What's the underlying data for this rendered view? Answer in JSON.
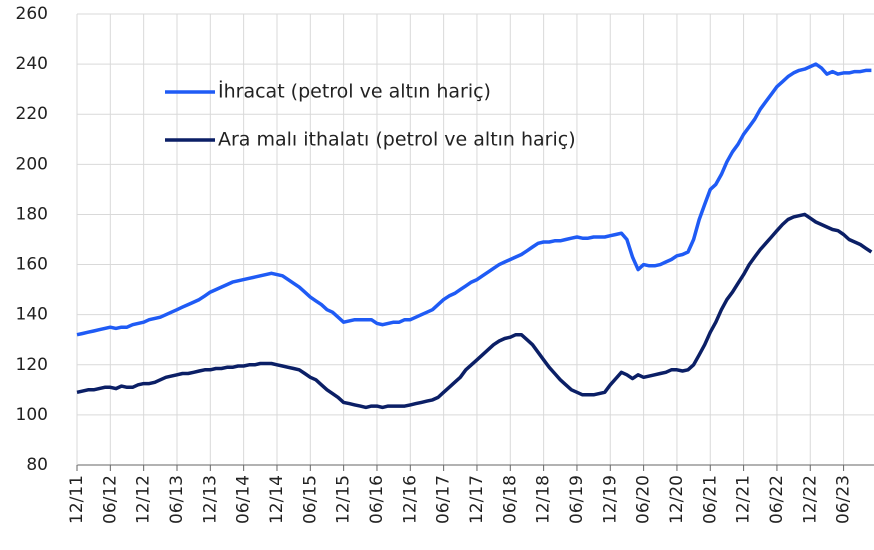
{
  "chart_data": {
    "type": "line",
    "categories": [
      "12/11",
      null,
      null,
      null,
      null,
      null,
      "06/12",
      null,
      null,
      null,
      null,
      null,
      "12/12",
      null,
      null,
      null,
      null,
      null,
      "06/13",
      null,
      null,
      null,
      null,
      null,
      "12/13",
      null,
      null,
      null,
      null,
      null,
      "06/14",
      null,
      null,
      null,
      null,
      null,
      "12/14",
      null,
      null,
      null,
      null,
      null,
      "06/15",
      null,
      null,
      null,
      null,
      null,
      "12/15",
      null,
      null,
      null,
      null,
      null,
      "06/16",
      null,
      null,
      null,
      null,
      null,
      "12/16",
      null,
      null,
      null,
      null,
      null,
      "06/17",
      null,
      null,
      null,
      null,
      null,
      "12/17",
      null,
      null,
      null,
      null,
      null,
      "06/18",
      null,
      null,
      null,
      null,
      null,
      "12/18",
      null,
      null,
      null,
      null,
      null,
      "06/19",
      null,
      null,
      null,
      null,
      null,
      "12/19",
      null,
      null,
      null,
      null,
      null,
      "06/20",
      null,
      null,
      null,
      null,
      null,
      "12/20",
      null,
      null,
      null,
      null,
      null,
      "06/21",
      null,
      null,
      null,
      null,
      null,
      "12/21",
      null,
      null,
      null,
      null,
      null,
      "06/22",
      null,
      null,
      null,
      null,
      null,
      "12/22",
      null,
      null,
      null,
      null,
      null,
      "06/23",
      null,
      null,
      null,
      null,
      null
    ],
    "series": [
      {
        "name": "İhracat (petrol ve altın hariç)",
        "color": "#1f5bf5",
        "values": [
          132,
          132.5,
          133,
          133.5,
          134,
          134.5,
          135,
          134.5,
          135,
          135,
          136,
          136.5,
          137,
          138,
          138.5,
          139,
          140,
          141,
          142,
          143,
          144,
          145,
          146,
          147.5,
          149,
          150,
          151,
          152,
          153,
          153.5,
          154,
          154.5,
          155,
          155.5,
          156,
          156.5,
          156,
          155.5,
          154,
          152.5,
          151,
          149,
          147,
          145.5,
          144,
          142,
          141,
          139,
          137,
          137.5,
          138,
          138,
          138,
          138,
          136.5,
          136,
          136.5,
          137,
          137,
          138,
          138,
          139,
          140,
          141,
          142,
          144,
          146,
          147.5,
          148.5,
          150,
          151.5,
          153,
          154,
          155.5,
          157,
          158.5,
          160,
          161,
          162,
          163,
          164,
          165.5,
          167,
          168.5,
          169,
          169,
          169.5,
          169.5,
          170,
          170.5,
          171,
          170.5,
          170.5,
          171,
          171,
          171,
          171.5,
          172,
          172.5,
          170,
          163,
          158,
          160,
          159.5,
          159.5,
          160,
          161,
          162,
          163.5,
          164,
          165,
          170,
          178,
          184,
          190,
          192,
          196,
          201,
          205,
          208,
          212,
          215,
          218,
          222,
          225,
          228,
          231,
          233,
          235,
          236.5,
          237.5,
          238,
          239,
          240,
          238.5,
          236,
          237,
          236,
          236.5,
          236.5,
          237,
          237,
          237.5,
          237.5
        ]
      },
      {
        "name": "Ara malı ithalatı (petrol ve altın hariç)",
        "color": "#0b1f66",
        "values": [
          109,
          109.5,
          110,
          110,
          110.5,
          111,
          111,
          110.5,
          111.5,
          111,
          111,
          112,
          112.5,
          112.5,
          113,
          114,
          115,
          115.5,
          116,
          116.5,
          116.5,
          117,
          117.5,
          118,
          118,
          118.5,
          118.5,
          119,
          119,
          119.5,
          119.5,
          120,
          120,
          120.5,
          120.5,
          120.5,
          120,
          119.5,
          119,
          118.5,
          118,
          116.5,
          115,
          114,
          112,
          110,
          108.5,
          107,
          105,
          104.5,
          104,
          103.5,
          103,
          103.5,
          103.5,
          103,
          103.5,
          103.5,
          103.5,
          103.5,
          104,
          104.5,
          105,
          105.5,
          106,
          107,
          109,
          111,
          113,
          115,
          118,
          120,
          122,
          124,
          126,
          128,
          129.5,
          130.5,
          131,
          132,
          132,
          130,
          128,
          125,
          122,
          119,
          116.5,
          114,
          112,
          110,
          109,
          108,
          108,
          108,
          108.5,
          109,
          112,
          114.5,
          117,
          116,
          114.5,
          116,
          115,
          115.5,
          116,
          116.5,
          117,
          118,
          118,
          117.5,
          118,
          120,
          124,
          128,
          133,
          137,
          142,
          146,
          149,
          152.5,
          156,
          160,
          163,
          166,
          168.5,
          171,
          173.5,
          176,
          178,
          179,
          179.5,
          180,
          178.5,
          177,
          176,
          175,
          174,
          173.5,
          172,
          170,
          169,
          168,
          166.5,
          165
        ]
      }
    ],
    "ylim": [
      80,
      260
    ],
    "yticks": [
      80,
      100,
      120,
      140,
      160,
      180,
      200,
      220,
      240,
      260
    ],
    "grid": true
  }
}
